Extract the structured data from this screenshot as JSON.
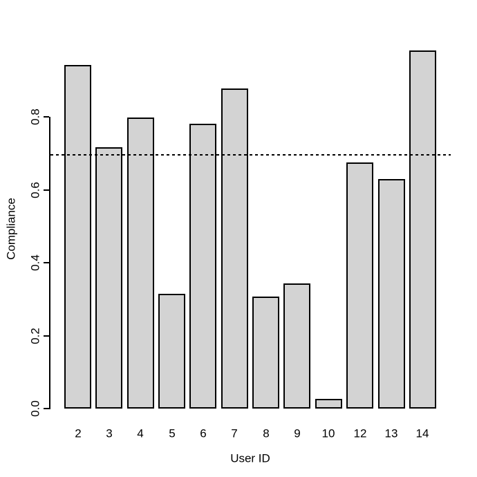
{
  "chart_data": {
    "type": "bar",
    "title": "",
    "xlabel": "User ID",
    "ylabel": "Compliance",
    "categories": [
      "2",
      "3",
      "4",
      "5",
      "6",
      "7",
      "8",
      "9",
      "10",
      "12",
      "13",
      "14"
    ],
    "values": [
      0.943,
      0.718,
      0.799,
      0.315,
      0.782,
      0.878,
      0.308,
      0.343,
      0.026,
      0.675,
      0.63,
      0.983
    ],
    "ylim": [
      0,
      1.0
    ],
    "ytick_labels": [
      "0.0",
      "0.2",
      "0.4",
      "0.6",
      "0.8"
    ],
    "yticks": [
      0.0,
      0.2,
      0.4,
      0.6,
      0.8
    ],
    "reference_line": {
      "value": 0.696,
      "style": "dashed",
      "color": "#000000"
    },
    "bar_fill_color": "#d3d3d3",
    "bar_border_color": "#000000",
    "axis_color": "#000000",
    "background_color": "#ffffff",
    "grid": false,
    "legend_position": "none"
  }
}
